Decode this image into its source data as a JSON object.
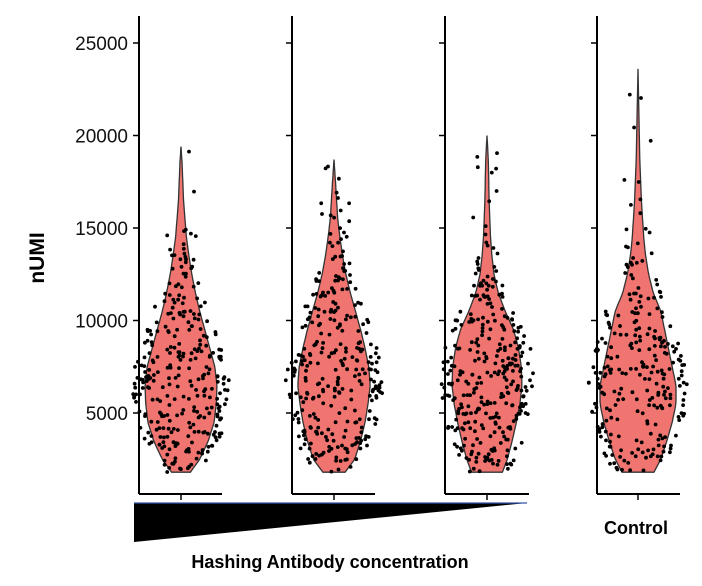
{
  "chart_data": {
    "type": "violin",
    "title": "",
    "ylabel": "nUMI",
    "xlabel": "Hashing Antibody concentration",
    "control_label": "Control",
    "ylim": [
      1500,
      26500
    ],
    "yticks": [
      5000,
      10000,
      15000,
      20000,
      25000
    ],
    "fill_color": "#f07470",
    "stroke_color": "#333333",
    "point_color": "#000000",
    "panels": [
      {
        "name": "",
        "min": 1800,
        "max": 19400,
        "median": 6500,
        "n": 300,
        "profile": [
          [
            1800,
            0.26
          ],
          [
            2500,
            0.52
          ],
          [
            3500,
            0.76
          ],
          [
            4500,
            0.92
          ],
          [
            5500,
            0.98
          ],
          [
            6500,
            1.0
          ],
          [
            7500,
            0.94
          ],
          [
            8500,
            0.8
          ],
          [
            9500,
            0.66
          ],
          [
            10500,
            0.52
          ],
          [
            11500,
            0.4
          ],
          [
            12500,
            0.3
          ],
          [
            13500,
            0.22
          ],
          [
            14500,
            0.15
          ],
          [
            15500,
            0.11
          ],
          [
            16500,
            0.07
          ],
          [
            17500,
            0.05
          ],
          [
            18500,
            0.03
          ],
          [
            19400,
            0.0
          ]
        ]
      },
      {
        "name": "",
        "min": 1800,
        "max": 18700,
        "median": 7000,
        "n": 300,
        "profile": [
          [
            1800,
            0.3
          ],
          [
            2500,
            0.56
          ],
          [
            3500,
            0.72
          ],
          [
            4500,
            0.84
          ],
          [
            5500,
            0.92
          ],
          [
            6500,
            0.98
          ],
          [
            7500,
            0.94
          ],
          [
            8500,
            0.84
          ],
          [
            9500,
            0.72
          ],
          [
            10500,
            0.58
          ],
          [
            11500,
            0.44
          ],
          [
            12500,
            0.32
          ],
          [
            13500,
            0.23
          ],
          [
            14500,
            0.16
          ],
          [
            15500,
            0.1
          ],
          [
            16500,
            0.07
          ],
          [
            17500,
            0.04
          ],
          [
            18700,
            0.0
          ]
        ]
      },
      {
        "name": "",
        "min": 1800,
        "max": 20000,
        "median": 6800,
        "n": 320,
        "profile": [
          [
            1800,
            0.44
          ],
          [
            2500,
            0.58
          ],
          [
            3500,
            0.72
          ],
          [
            4500,
            0.84
          ],
          [
            5500,
            0.94
          ],
          [
            6500,
            1.0
          ],
          [
            7500,
            0.98
          ],
          [
            8500,
            0.9
          ],
          [
            9500,
            0.76
          ],
          [
            10500,
            0.52
          ],
          [
            11500,
            0.32
          ],
          [
            12500,
            0.2
          ],
          [
            13500,
            0.14
          ],
          [
            14500,
            0.1
          ],
          [
            15500,
            0.08
          ],
          [
            16500,
            0.06
          ],
          [
            17500,
            0.05
          ],
          [
            18500,
            0.04
          ],
          [
            19300,
            0.02
          ],
          [
            20000,
            0.0
          ]
        ]
      },
      {
        "name": "Control",
        "min": 1800,
        "max": 23600,
        "median": 6500,
        "n": 260,
        "profile": [
          [
            1800,
            0.42
          ],
          [
            2500,
            0.6
          ],
          [
            3500,
            0.76
          ],
          [
            4500,
            0.9
          ],
          [
            5500,
            1.0
          ],
          [
            6500,
            1.0
          ],
          [
            7500,
            0.9
          ],
          [
            8500,
            0.8
          ],
          [
            9500,
            0.7
          ],
          [
            10500,
            0.6
          ],
          [
            11500,
            0.4
          ],
          [
            12500,
            0.28
          ],
          [
            13500,
            0.2
          ],
          [
            14500,
            0.15
          ],
          [
            15500,
            0.12
          ],
          [
            16500,
            0.09
          ],
          [
            17500,
            0.07
          ],
          [
            18500,
            0.05
          ],
          [
            19500,
            0.04
          ],
          [
            20500,
            0.03
          ],
          [
            21500,
            0.02
          ],
          [
            22500,
            0.01
          ],
          [
            23600,
            0.0
          ]
        ]
      }
    ]
  }
}
